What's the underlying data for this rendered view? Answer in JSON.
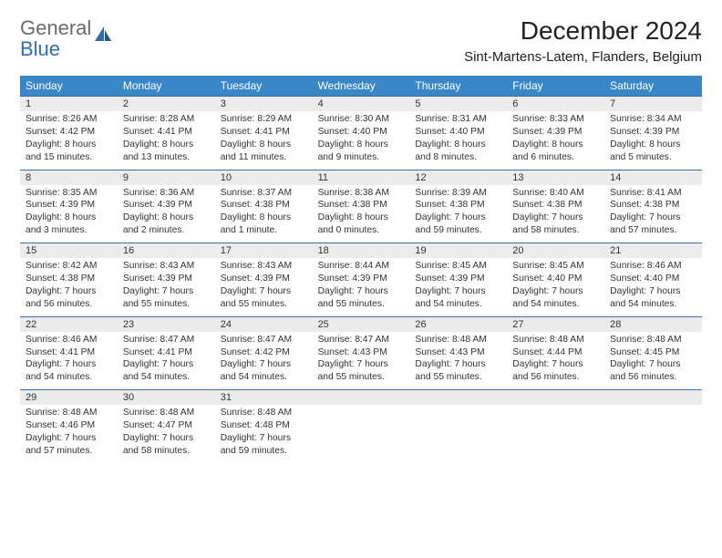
{
  "brand": {
    "word1": "General",
    "word2": "Blue"
  },
  "title": "December 2024",
  "location": "Sint-Martens-Latem, Flanders, Belgium",
  "colors": {
    "header_bg": "#3a87c8",
    "daynum_bg": "#ececec",
    "daynum_border": "#3a6fa0",
    "text": "#333333",
    "logo_gray": "#6a6a6a",
    "logo_blue": "#2f6fb0"
  },
  "weekdays": [
    "Sunday",
    "Monday",
    "Tuesday",
    "Wednesday",
    "Thursday",
    "Friday",
    "Saturday"
  ],
  "weeks": [
    [
      {
        "n": "1",
        "sr": "Sunrise: 8:26 AM",
        "ss": "Sunset: 4:42 PM",
        "d1": "Daylight: 8 hours",
        "d2": "and 15 minutes."
      },
      {
        "n": "2",
        "sr": "Sunrise: 8:28 AM",
        "ss": "Sunset: 4:41 PM",
        "d1": "Daylight: 8 hours",
        "d2": "and 13 minutes."
      },
      {
        "n": "3",
        "sr": "Sunrise: 8:29 AM",
        "ss": "Sunset: 4:41 PM",
        "d1": "Daylight: 8 hours",
        "d2": "and 11 minutes."
      },
      {
        "n": "4",
        "sr": "Sunrise: 8:30 AM",
        "ss": "Sunset: 4:40 PM",
        "d1": "Daylight: 8 hours",
        "d2": "and 9 minutes."
      },
      {
        "n": "5",
        "sr": "Sunrise: 8:31 AM",
        "ss": "Sunset: 4:40 PM",
        "d1": "Daylight: 8 hours",
        "d2": "and 8 minutes."
      },
      {
        "n": "6",
        "sr": "Sunrise: 8:33 AM",
        "ss": "Sunset: 4:39 PM",
        "d1": "Daylight: 8 hours",
        "d2": "and 6 minutes."
      },
      {
        "n": "7",
        "sr": "Sunrise: 8:34 AM",
        "ss": "Sunset: 4:39 PM",
        "d1": "Daylight: 8 hours",
        "d2": "and 5 minutes."
      }
    ],
    [
      {
        "n": "8",
        "sr": "Sunrise: 8:35 AM",
        "ss": "Sunset: 4:39 PM",
        "d1": "Daylight: 8 hours",
        "d2": "and 3 minutes."
      },
      {
        "n": "9",
        "sr": "Sunrise: 8:36 AM",
        "ss": "Sunset: 4:39 PM",
        "d1": "Daylight: 8 hours",
        "d2": "and 2 minutes."
      },
      {
        "n": "10",
        "sr": "Sunrise: 8:37 AM",
        "ss": "Sunset: 4:38 PM",
        "d1": "Daylight: 8 hours",
        "d2": "and 1 minute."
      },
      {
        "n": "11",
        "sr": "Sunrise: 8:38 AM",
        "ss": "Sunset: 4:38 PM",
        "d1": "Daylight: 8 hours",
        "d2": "and 0 minutes."
      },
      {
        "n": "12",
        "sr": "Sunrise: 8:39 AM",
        "ss": "Sunset: 4:38 PM",
        "d1": "Daylight: 7 hours",
        "d2": "and 59 minutes."
      },
      {
        "n": "13",
        "sr": "Sunrise: 8:40 AM",
        "ss": "Sunset: 4:38 PM",
        "d1": "Daylight: 7 hours",
        "d2": "and 58 minutes."
      },
      {
        "n": "14",
        "sr": "Sunrise: 8:41 AM",
        "ss": "Sunset: 4:38 PM",
        "d1": "Daylight: 7 hours",
        "d2": "and 57 minutes."
      }
    ],
    [
      {
        "n": "15",
        "sr": "Sunrise: 8:42 AM",
        "ss": "Sunset: 4:38 PM",
        "d1": "Daylight: 7 hours",
        "d2": "and 56 minutes."
      },
      {
        "n": "16",
        "sr": "Sunrise: 8:43 AM",
        "ss": "Sunset: 4:39 PM",
        "d1": "Daylight: 7 hours",
        "d2": "and 55 minutes."
      },
      {
        "n": "17",
        "sr": "Sunrise: 8:43 AM",
        "ss": "Sunset: 4:39 PM",
        "d1": "Daylight: 7 hours",
        "d2": "and 55 minutes."
      },
      {
        "n": "18",
        "sr": "Sunrise: 8:44 AM",
        "ss": "Sunset: 4:39 PM",
        "d1": "Daylight: 7 hours",
        "d2": "and 55 minutes."
      },
      {
        "n": "19",
        "sr": "Sunrise: 8:45 AM",
        "ss": "Sunset: 4:39 PM",
        "d1": "Daylight: 7 hours",
        "d2": "and 54 minutes."
      },
      {
        "n": "20",
        "sr": "Sunrise: 8:45 AM",
        "ss": "Sunset: 4:40 PM",
        "d1": "Daylight: 7 hours",
        "d2": "and 54 minutes."
      },
      {
        "n": "21",
        "sr": "Sunrise: 8:46 AM",
        "ss": "Sunset: 4:40 PM",
        "d1": "Daylight: 7 hours",
        "d2": "and 54 minutes."
      }
    ],
    [
      {
        "n": "22",
        "sr": "Sunrise: 8:46 AM",
        "ss": "Sunset: 4:41 PM",
        "d1": "Daylight: 7 hours",
        "d2": "and 54 minutes."
      },
      {
        "n": "23",
        "sr": "Sunrise: 8:47 AM",
        "ss": "Sunset: 4:41 PM",
        "d1": "Daylight: 7 hours",
        "d2": "and 54 minutes."
      },
      {
        "n": "24",
        "sr": "Sunrise: 8:47 AM",
        "ss": "Sunset: 4:42 PM",
        "d1": "Daylight: 7 hours",
        "d2": "and 54 minutes."
      },
      {
        "n": "25",
        "sr": "Sunrise: 8:47 AM",
        "ss": "Sunset: 4:43 PM",
        "d1": "Daylight: 7 hours",
        "d2": "and 55 minutes."
      },
      {
        "n": "26",
        "sr": "Sunrise: 8:48 AM",
        "ss": "Sunset: 4:43 PM",
        "d1": "Daylight: 7 hours",
        "d2": "and 55 minutes."
      },
      {
        "n": "27",
        "sr": "Sunrise: 8:48 AM",
        "ss": "Sunset: 4:44 PM",
        "d1": "Daylight: 7 hours",
        "d2": "and 56 minutes."
      },
      {
        "n": "28",
        "sr": "Sunrise: 8:48 AM",
        "ss": "Sunset: 4:45 PM",
        "d1": "Daylight: 7 hours",
        "d2": "and 56 minutes."
      }
    ],
    [
      {
        "n": "29",
        "sr": "Sunrise: 8:48 AM",
        "ss": "Sunset: 4:46 PM",
        "d1": "Daylight: 7 hours",
        "d2": "and 57 minutes."
      },
      {
        "n": "30",
        "sr": "Sunrise: 8:48 AM",
        "ss": "Sunset: 4:47 PM",
        "d1": "Daylight: 7 hours",
        "d2": "and 58 minutes."
      },
      {
        "n": "31",
        "sr": "Sunrise: 8:48 AM",
        "ss": "Sunset: 4:48 PM",
        "d1": "Daylight: 7 hours",
        "d2": "and 59 minutes."
      },
      {
        "empty": true
      },
      {
        "empty": true
      },
      {
        "empty": true
      },
      {
        "empty": true
      }
    ]
  ]
}
